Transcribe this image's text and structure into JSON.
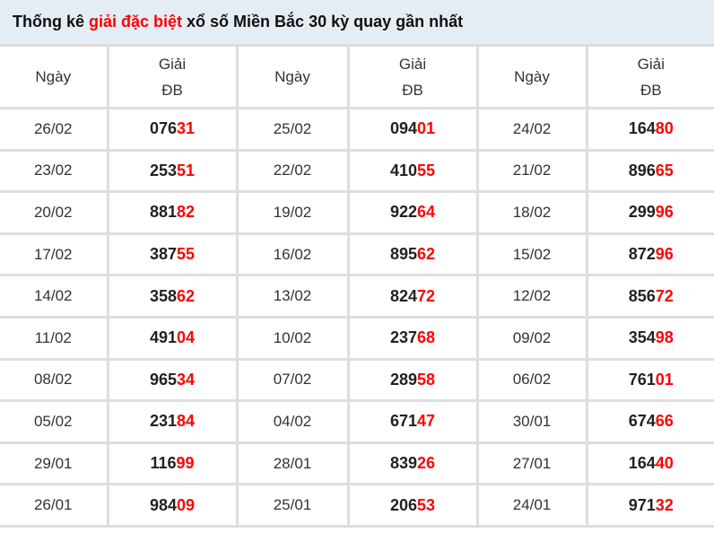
{
  "title": {
    "prefix": "Thống kê ",
    "highlight": "giải đặc biệt",
    "suffix": " xổ số Miền Bắc 30 kỳ quay gần nhất"
  },
  "colors": {
    "highlight": "#ff0000",
    "header_bg": "#e4edf4",
    "border": "#dedede"
  },
  "headers": {
    "date": "Ngày",
    "prize_line1": "Giải",
    "prize_line2": "ĐB"
  },
  "rows": [
    [
      {
        "date": "26/02",
        "value": "07631"
      },
      {
        "date": "25/02",
        "value": "09401"
      },
      {
        "date": "24/02",
        "value": "16480"
      }
    ],
    [
      {
        "date": "23/02",
        "value": "25351"
      },
      {
        "date": "22/02",
        "value": "41055"
      },
      {
        "date": "21/02",
        "value": "89665"
      }
    ],
    [
      {
        "date": "20/02",
        "value": "88182"
      },
      {
        "date": "19/02",
        "value": "92264"
      },
      {
        "date": "18/02",
        "value": "29996"
      }
    ],
    [
      {
        "date": "17/02",
        "value": "38755"
      },
      {
        "date": "16/02",
        "value": "89562"
      },
      {
        "date": "15/02",
        "value": "87296"
      }
    ],
    [
      {
        "date": "14/02",
        "value": "35862"
      },
      {
        "date": "13/02",
        "value": "82472"
      },
      {
        "date": "12/02",
        "value": "85672"
      }
    ],
    [
      {
        "date": "11/02",
        "value": "49104"
      },
      {
        "date": "10/02",
        "value": "23768"
      },
      {
        "date": "09/02",
        "value": "35498"
      }
    ],
    [
      {
        "date": "08/02",
        "value": "96534"
      },
      {
        "date": "07/02",
        "value": "28958"
      },
      {
        "date": "06/02",
        "value": "76101"
      }
    ],
    [
      {
        "date": "05/02",
        "value": "23184"
      },
      {
        "date": "04/02",
        "value": "67147"
      },
      {
        "date": "30/01",
        "value": "67466"
      }
    ],
    [
      {
        "date": "29/01",
        "value": "11699"
      },
      {
        "date": "28/01",
        "value": "83926"
      },
      {
        "date": "27/01",
        "value": "16440"
      }
    ],
    [
      {
        "date": "26/01",
        "value": "98409"
      },
      {
        "date": "25/01",
        "value": "20653"
      },
      {
        "date": "24/01",
        "value": "97132"
      }
    ]
  ]
}
